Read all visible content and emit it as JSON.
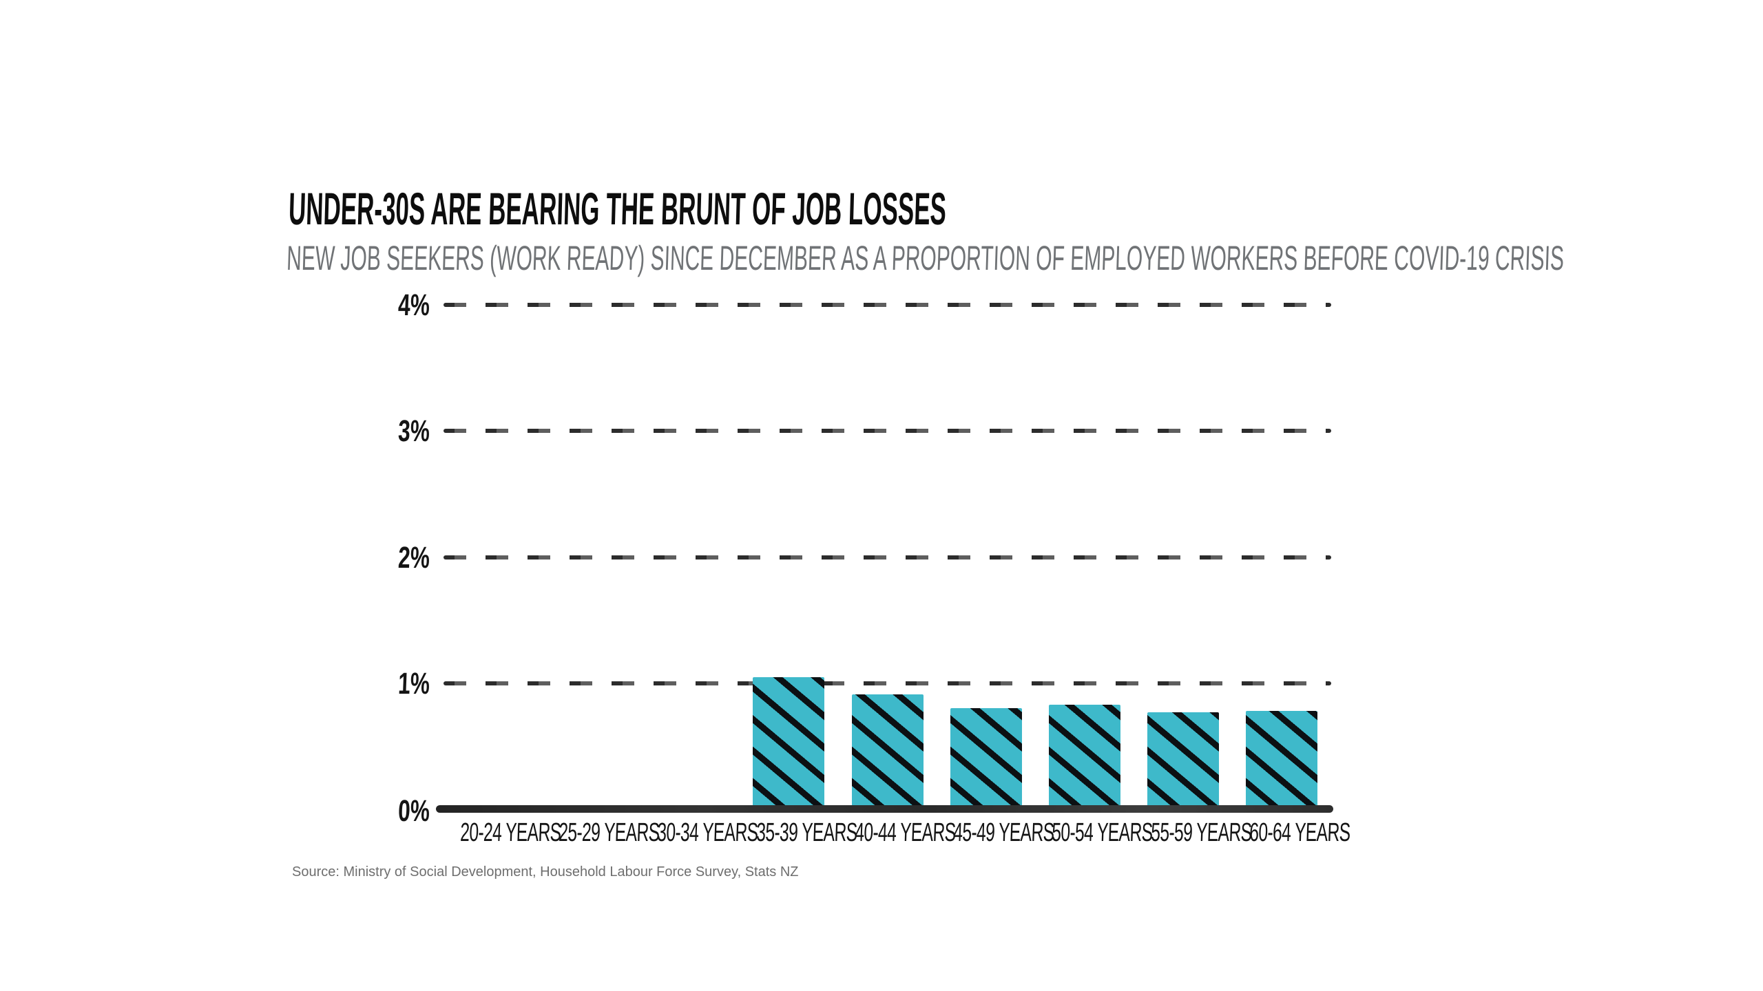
{
  "title": "UNDER-30S ARE BEARING THE BRUNT OF JOB LOSSES",
  "subtitle": "NEW JOB SEEKERS (WORK READY) SINCE DECEMBER AS A PROPORTION OF EMPLOYED WORKERS BEFORE COVID-19 CRISIS",
  "source": "Source: Ministry of Social Development, Household Labour Force Survey, Stats NZ",
  "chart_data": {
    "type": "bar",
    "title": "UNDER-30S ARE BEARING THE BRUNT OF JOB LOSSES",
    "subtitle": "NEW JOB SEEKERS (WORK READY) SINCE DECEMBER AS A PROPORTION OF EMPLOYED WORKERS BEFORE COVID-19 CRISIS",
    "categories": [
      "20-24 YEARS",
      "25-29 YEARS",
      "30-34 YEARS",
      "35-39 YEARS",
      "40-44 YEARS",
      "45-49 YEARS",
      "50-54 YEARS",
      "55-59 YEARS",
      "60-64 YEARS"
    ],
    "values": [
      0,
      0,
      0,
      1.05,
      0.91,
      0.8,
      0.83,
      0.77,
      0.78
    ],
    "xlabel": "",
    "ylabel": "",
    "ylim": [
      0,
      4
    ],
    "yticks": [
      0,
      1,
      2,
      3,
      4
    ],
    "ytick_labels": [
      "0%",
      "1%",
      "2%",
      "3%",
      "4%"
    ],
    "grid": "horizontal-dashed",
    "legend_position": "none",
    "bar_fill": "#3eb9ca",
    "bar_hatch": "diagonal-down-black",
    "hatch_color": "#0c1013"
  },
  "colors": {
    "background": "#ffffff",
    "title": "#0d0d0d",
    "subtitle": "#707376",
    "gridline": "#2c2c2c",
    "axis_line": "#2e2e2e",
    "tick_label": "#141414",
    "source": "#6e6e6e",
    "bar_fill": "#3eb9ca",
    "bar_hatch": "#0c1013"
  }
}
